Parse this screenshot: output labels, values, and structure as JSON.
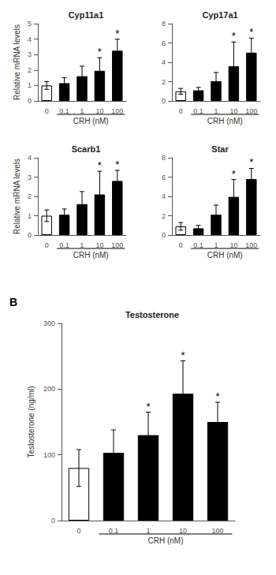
{
  "chart_data": [
    {
      "type": "bar",
      "title": "Cyp11a1",
      "categories": [
        "0",
        "0.1",
        "1",
        "10",
        "100"
      ],
      "values": [
        1.0,
        1.15,
        1.6,
        1.95,
        3.25
      ],
      "errors": [
        0.25,
        0.35,
        0.65,
        0.85,
        0.75
      ],
      "colors": [
        "white",
        "black",
        "black",
        "black",
        "black"
      ],
      "ylim": [
        0,
        5
      ],
      "yticks": [
        0,
        1,
        2,
        3,
        4,
        5
      ],
      "ylabel": "Relative mRNA levels",
      "xlabel": "CRH (nM)",
      "grid": false,
      "annotations": [
        {
          "x": "10",
          "text": "*"
        },
        {
          "x": "100",
          "text": "*"
        }
      ]
    },
    {
      "type": "bar",
      "title": "Cyp17a1",
      "categories": [
        "0",
        "0.1",
        "1",
        "10",
        "100"
      ],
      "values": [
        1.0,
        1.1,
        2.05,
        3.6,
        5.0
      ],
      "errors": [
        0.3,
        0.3,
        0.9,
        2.5,
        1.5
      ],
      "colors": [
        "white",
        "black",
        "black",
        "black",
        "black"
      ],
      "ylim": [
        0,
        8
      ],
      "yticks": [
        0,
        2,
        4,
        6,
        8
      ],
      "xlabel": "CRH (nM)",
      "grid": false,
      "annotations": [
        {
          "x": "10",
          "text": "*"
        },
        {
          "x": "100",
          "text": "*"
        }
      ]
    },
    {
      "type": "bar",
      "title": "Scarb1",
      "categories": [
        "0",
        "0.1",
        "1",
        "10",
        "100"
      ],
      "values": [
        1.0,
        1.05,
        1.6,
        2.1,
        2.8
      ],
      "errors": [
        0.3,
        0.3,
        0.65,
        1.2,
        0.55
      ],
      "colors": [
        "white",
        "black",
        "black",
        "black",
        "black"
      ],
      "ylim": [
        0,
        4
      ],
      "yticks": [
        0,
        1,
        2,
        3,
        4
      ],
      "ylabel": "Relative mRNA levels",
      "xlabel": "CRH (nM)",
      "grid": false,
      "annotations": [
        {
          "x": "10",
          "text": "*"
        },
        {
          "x": "100",
          "text": "*"
        }
      ]
    },
    {
      "type": "bar",
      "title": "Star",
      "categories": [
        "0",
        "0.1",
        "1",
        "10",
        "100"
      ],
      "values": [
        0.9,
        0.7,
        2.1,
        3.95,
        5.8
      ],
      "errors": [
        0.4,
        0.3,
        1.0,
        1.8,
        1.1
      ],
      "colors": [
        "white",
        "black",
        "black",
        "black",
        "black"
      ],
      "ylim": [
        0,
        8
      ],
      "yticks": [
        0,
        2,
        4,
        6,
        8
      ],
      "xlabel": "CRH (nM)",
      "grid": false,
      "annotations": [
        {
          "x": "10",
          "text": "*"
        },
        {
          "x": "100",
          "text": "*"
        }
      ]
    },
    {
      "type": "bar",
      "title": "Testosterone",
      "categories": [
        "0",
        "0.1",
        "1",
        "10",
        "100"
      ],
      "values": [
        80,
        103,
        130,
        193,
        150
      ],
      "errors": [
        28,
        35,
        35,
        50,
        30
      ],
      "colors": [
        "white",
        "black",
        "black",
        "black",
        "black"
      ],
      "ylim": [
        0,
        300
      ],
      "yticks": [
        0,
        100,
        200,
        300
      ],
      "ylabel": "Testosterone (ng/ml)",
      "xlabel": "CRH (nM)",
      "grid": false,
      "annotations": [
        {
          "x": "1",
          "text": "*"
        },
        {
          "x": "10",
          "text": "*"
        },
        {
          "x": "100",
          "text": "*"
        },
        {
          "text": "B"
        }
      ]
    }
  ]
}
